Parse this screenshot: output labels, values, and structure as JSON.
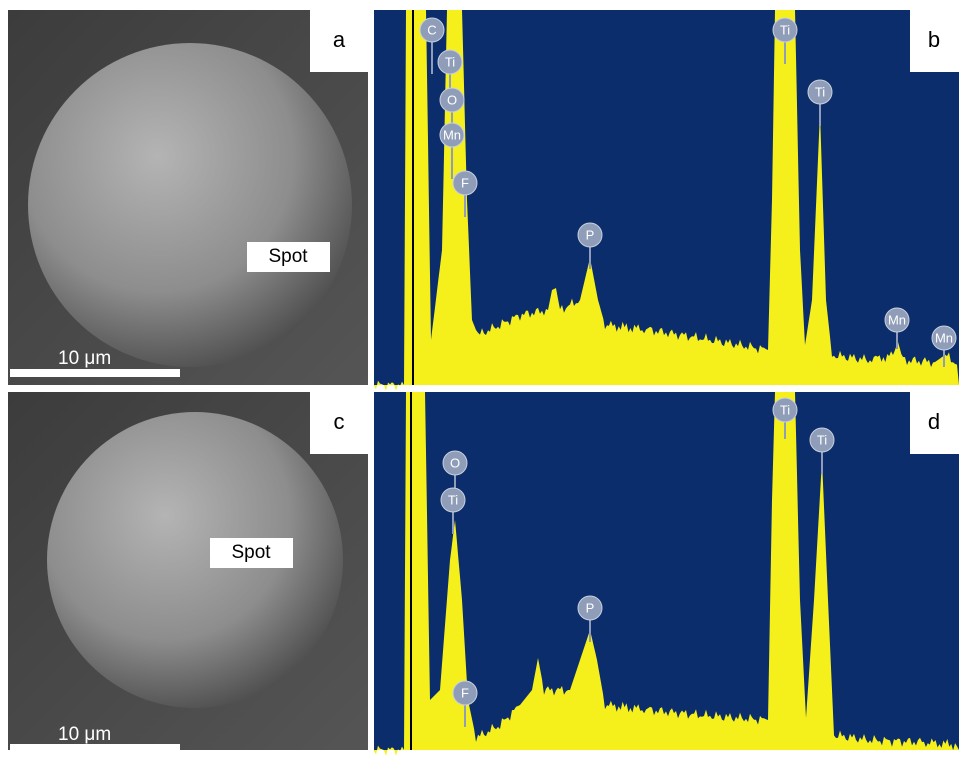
{
  "panels": [
    {
      "label": "a",
      "spot": "Spot",
      "scale_bar": "10 μm"
    },
    {
      "label": "b",
      "peaks": [
        "C",
        "Ti",
        "O",
        "Mn",
        "F",
        "P",
        "Ti",
        "Ti",
        "Mn",
        "Mn"
      ]
    },
    {
      "label": "c",
      "spot": "Spot",
      "scale_bar": "10 μm"
    },
    {
      "label": "d",
      "peaks": [
        "O",
        "Ti",
        "F",
        "P",
        "Ti",
        "Ti"
      ]
    }
  ]
}
